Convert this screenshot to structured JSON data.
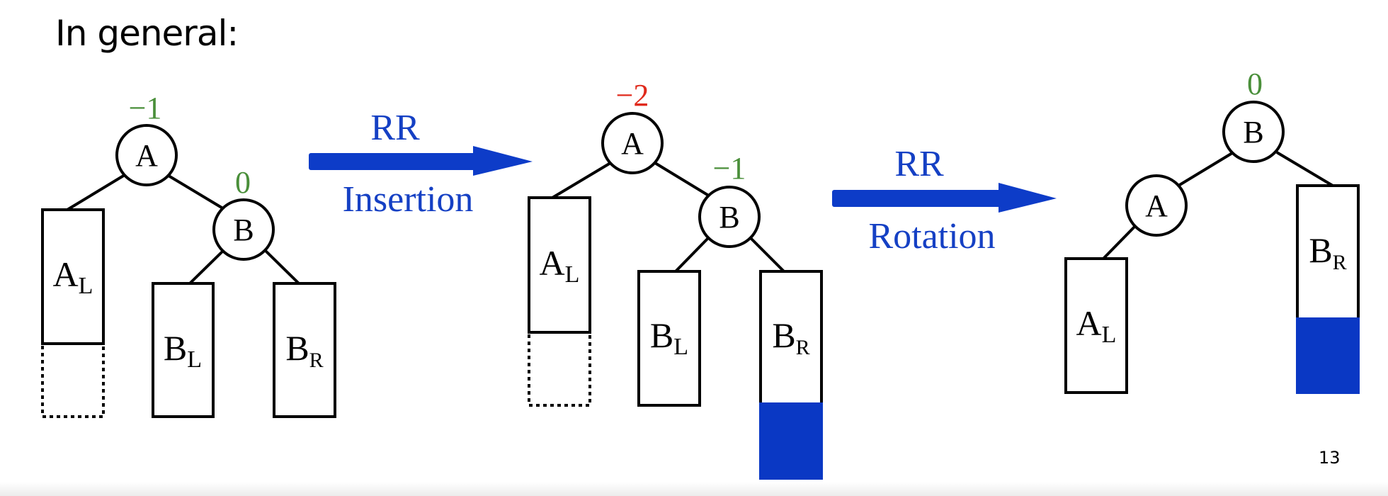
{
  "slide": {
    "heading": "In general:",
    "page_number": "13"
  },
  "colors": {
    "balance_ok": "#4a8f3a",
    "balance_bad": "#e02a1c",
    "arrow": "#0d3cc8",
    "label": "#1540c4",
    "inserted_fill": "#0a38c4"
  },
  "arrows": [
    {
      "top": "RR",
      "bottom": "Insertion"
    },
    {
      "top": "RR",
      "bottom": "Rotation"
    }
  ],
  "trees": [
    {
      "nodes": [
        {
          "label": "A",
          "balance": "−1",
          "status": "ok"
        },
        {
          "label": "B",
          "balance": "0",
          "status": "ok"
        }
      ],
      "subtrees": [
        {
          "main": "A",
          "sub": "L"
        },
        {
          "main": "B",
          "sub": "L"
        },
        {
          "main": "B",
          "sub": "R"
        }
      ]
    },
    {
      "nodes": [
        {
          "label": "A",
          "balance": "−2",
          "status": "bad"
        },
        {
          "label": "B",
          "balance": "−1",
          "status": "ok"
        }
      ],
      "subtrees": [
        {
          "main": "A",
          "sub": "L"
        },
        {
          "main": "B",
          "sub": "L"
        },
        {
          "main": "B",
          "sub": "R"
        }
      ]
    },
    {
      "nodes": [
        {
          "label": "B",
          "balance": "0",
          "status": "ok"
        },
        {
          "label": "A"
        }
      ],
      "subtrees": [
        {
          "main": "A",
          "sub": "L"
        },
        {
          "main": "B",
          "sub": "R"
        }
      ]
    }
  ]
}
